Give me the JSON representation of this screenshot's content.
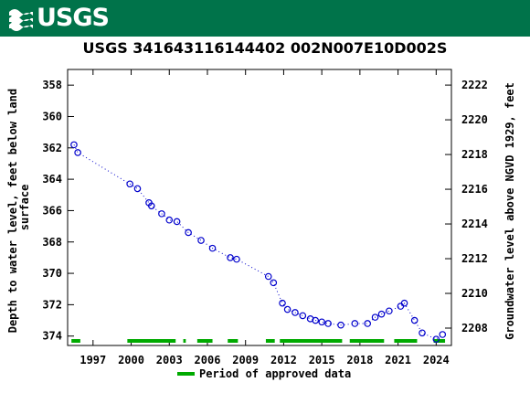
{
  "header": {
    "logo_text": "USGS"
  },
  "chart_data": {
    "type": "scatter",
    "title": "USGS 341643116144402 002N007E10D002S",
    "ylabel_left": [
      "Depth to water level, feet below land",
      "surface"
    ],
    "ylabel_right": "Groundwater level above NGVD 1929, feet",
    "xlim": [
      1995.0,
      2025.2
    ],
    "ylim_left": [
      357.0,
      374.6
    ],
    "ylim_right": [
      2222.9,
      2207.0
    ],
    "x_ticks": [
      1997,
      2000,
      2003,
      2006,
      2009,
      2012,
      2015,
      2018,
      2021,
      2024
    ],
    "y_ticks_left": [
      358,
      360,
      362,
      364,
      366,
      368,
      370,
      372,
      374
    ],
    "y_ticks_right": [
      2222,
      2220,
      2218,
      2216,
      2214,
      2212,
      2210,
      2208
    ],
    "marker_color": "#0000cc",
    "line_style": "dotted",
    "series": [
      {
        "points": [
          [
            1995.5,
            361.8
          ],
          [
            1995.8,
            362.3
          ],
          [
            1999.9,
            364.3
          ],
          [
            2000.5,
            364.6
          ],
          [
            2001.4,
            365.5
          ],
          [
            2001.6,
            365.7
          ],
          [
            2002.4,
            366.2
          ],
          [
            2003.0,
            366.6
          ],
          [
            2003.6,
            366.7
          ],
          [
            2004.5,
            367.4
          ],
          [
            2005.5,
            367.9
          ],
          [
            2006.4,
            368.4
          ],
          [
            2007.8,
            369.0
          ],
          [
            2008.3,
            369.1
          ],
          [
            2010.8,
            370.2
          ],
          [
            2011.2,
            370.6
          ],
          [
            2011.9,
            371.9
          ],
          [
            2012.3,
            372.3
          ],
          [
            2012.9,
            372.5
          ],
          [
            2013.5,
            372.7
          ],
          [
            2014.1,
            372.9
          ],
          [
            2014.5,
            373.0
          ],
          [
            2015.0,
            373.1
          ],
          [
            2015.5,
            373.2
          ],
          [
            2016.5,
            373.3
          ],
          [
            2017.6,
            373.2
          ],
          [
            2018.6,
            373.2
          ],
          [
            2019.2,
            372.8
          ],
          [
            2019.7,
            372.6
          ],
          [
            2020.3,
            372.4
          ],
          [
            2021.2,
            372.1
          ],
          [
            2021.5,
            371.9
          ],
          [
            2022.3,
            373.0
          ],
          [
            2022.9,
            373.8
          ],
          [
            2024.0,
            374.2
          ],
          [
            2024.5,
            373.9
          ]
        ]
      }
    ],
    "approved_periods": [
      [
        1995.3,
        1996.0
      ],
      [
        1999.7,
        2003.5
      ],
      [
        2004.1,
        2004.3
      ],
      [
        2005.2,
        2006.4
      ],
      [
        2007.6,
        2008.4
      ],
      [
        2010.6,
        2011.3
      ],
      [
        2011.7,
        2016.6
      ],
      [
        2017.2,
        2019.9
      ],
      [
        2020.7,
        2022.5
      ],
      [
        2023.8,
        2024.7
      ]
    ],
    "approved_color": "#00aa00",
    "legend": {
      "label": "Period of approved data",
      "placement": "bottom"
    }
  }
}
